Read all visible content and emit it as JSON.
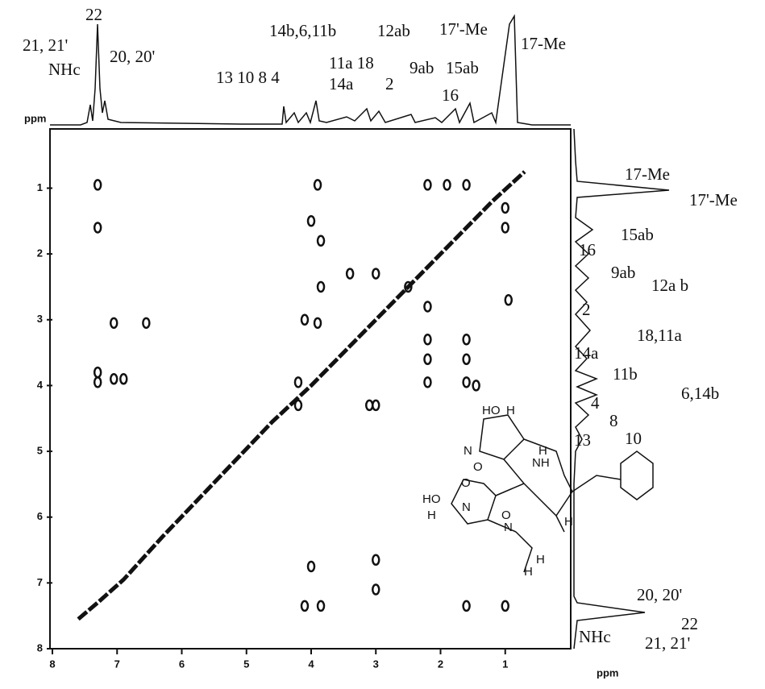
{
  "chart_data": {
    "type": "contour",
    "xlabel": "ppm",
    "ylabel": "ppm",
    "xlim": [
      8,
      0
    ],
    "ylim": [
      0.1,
      8
    ],
    "xticks": [
      8,
      7,
      6,
      5,
      4,
      3,
      2,
      1
    ],
    "yticks": [
      1,
      2,
      3,
      4,
      5,
      6,
      7,
      8
    ],
    "color": "#111111",
    "series": [
      {
        "name": "diagonal",
        "x": [
          7.6,
          7.3,
          6.9,
          6.3,
          4.6,
          4.0,
          3.5,
          3.0,
          2.5,
          2.0,
          1.6,
          1.2,
          0.7
        ],
        "y": [
          7.55,
          7.3,
          6.95,
          6.3,
          4.55,
          4.0,
          3.5,
          3.0,
          2.5,
          2.0,
          1.6,
          1.2,
          0.75
        ]
      },
      {
        "name": "cross-peaks",
        "x": [
          7.3,
          7.3,
          7.3,
          7.3,
          7.05,
          7.05,
          6.9,
          6.55,
          3.9,
          2.2,
          1.9,
          1.6,
          1.0,
          1.0,
          4.0,
          3.85,
          3.85,
          3.4,
          3.0,
          2.5,
          2.2,
          2.2,
          2.2,
          2.2,
          4.1,
          3.9,
          1.6,
          1.6,
          1.6,
          1.45,
          3.1,
          3.0,
          4.2,
          4.2,
          4.1,
          3.85,
          4.0,
          3.0,
          1.6,
          1.0,
          3.0,
          0.95
        ],
        "y": [
          0.95,
          1.6,
          3.8,
          3.95,
          3.05,
          3.9,
          3.9,
          3.05,
          0.95,
          0.95,
          0.95,
          0.95,
          1.3,
          1.6,
          1.5,
          1.8,
          2.5,
          2.3,
          2.3,
          2.5,
          2.8,
          3.3,
          3.6,
          3.95,
          3.0,
          3.05,
          3.3,
          3.6,
          3.95,
          4.0,
          4.3,
          4.3,
          3.95,
          4.3,
          7.35,
          7.35,
          6.75,
          7.1,
          7.35,
          7.35,
          6.65,
          2.7
        ]
      }
    ],
    "top_labels": [
      "22",
      "21, 21'",
      "NHc",
      "20, 20'",
      "13 10 8 4",
      "14b,6,11b",
      "11a 18",
      "14a",
      "2",
      "12ab",
      "9ab",
      "15ab",
      "16",
      "17'-Me",
      "17-Me"
    ],
    "right_labels": [
      "17-Me",
      "17'-Me",
      "15ab",
      "16",
      "9ab",
      "12a b",
      "2",
      "18,11a",
      "14a",
      "11b",
      "6,14b",
      "4",
      "8",
      "10",
      "13",
      "20, 20'",
      "22",
      "NHc",
      "21, 21'"
    ],
    "structure_labels": [
      "HO",
      "H",
      "N",
      "H",
      "NH",
      "O",
      "HO",
      "H",
      "N",
      "O",
      "O",
      "N",
      "H",
      "H",
      "H"
    ]
  }
}
